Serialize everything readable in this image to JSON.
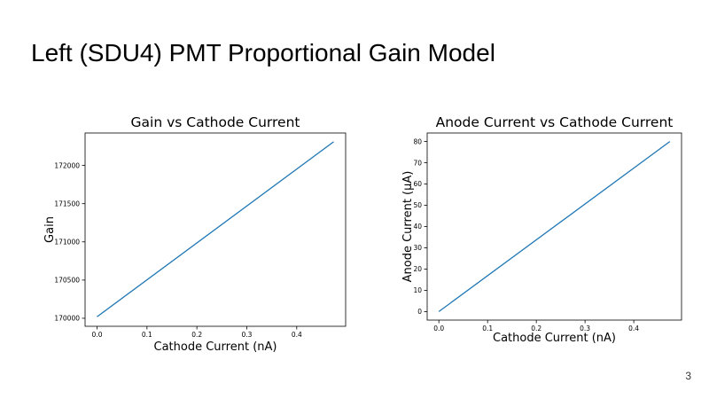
{
  "slide": {
    "title": "Left (SDU4) PMT Proportional Gain Model",
    "page_number": "3"
  },
  "chart_data": [
    {
      "type": "line",
      "title": "Gain vs Cathode Current",
      "xlabel": "Cathode Current (nA)",
      "ylabel": "Gain",
      "xlim": [
        -0.024,
        0.498
      ],
      "ylim": [
        169895,
        172425
      ],
      "xticks": [
        0.0,
        0.1,
        0.2,
        0.3,
        0.4
      ],
      "xtick_labels": [
        "0.0",
        "0.1",
        "0.2",
        "0.3",
        "0.4"
      ],
      "yticks": [
        170000,
        170500,
        171000,
        171500,
        172000
      ],
      "ytick_labels": [
        "170000",
        "170500",
        "171000",
        "171500",
        "172000"
      ],
      "grid": false,
      "color": "#1f77b4",
      "series": [
        {
          "x": [
            0.0,
            0.474
          ],
          "y": [
            170020,
            172310
          ]
        }
      ]
    },
    {
      "type": "line",
      "title": "Anode Current vs Cathode Current",
      "xlabel": "Cathode Current (nA)",
      "ylabel": "Anode Current (µA)",
      "xlim": [
        -0.024,
        0.498
      ],
      "ylim": [
        -4,
        84
      ],
      "xticks": [
        0.0,
        0.1,
        0.2,
        0.3,
        0.4
      ],
      "xtick_labels": [
        "0.0",
        "0.1",
        "0.2",
        "0.3",
        "0.4"
      ],
      "yticks": [
        0,
        10,
        20,
        30,
        40,
        50,
        60,
        70,
        80
      ],
      "ytick_labels": [
        "0",
        "10",
        "20",
        "30",
        "40",
        "50",
        "60",
        "70",
        "80"
      ],
      "grid": false,
      "color": "#1f77b4",
      "series": [
        {
          "x": [
            0.0,
            0.474
          ],
          "y": [
            0,
            80
          ]
        }
      ]
    }
  ]
}
